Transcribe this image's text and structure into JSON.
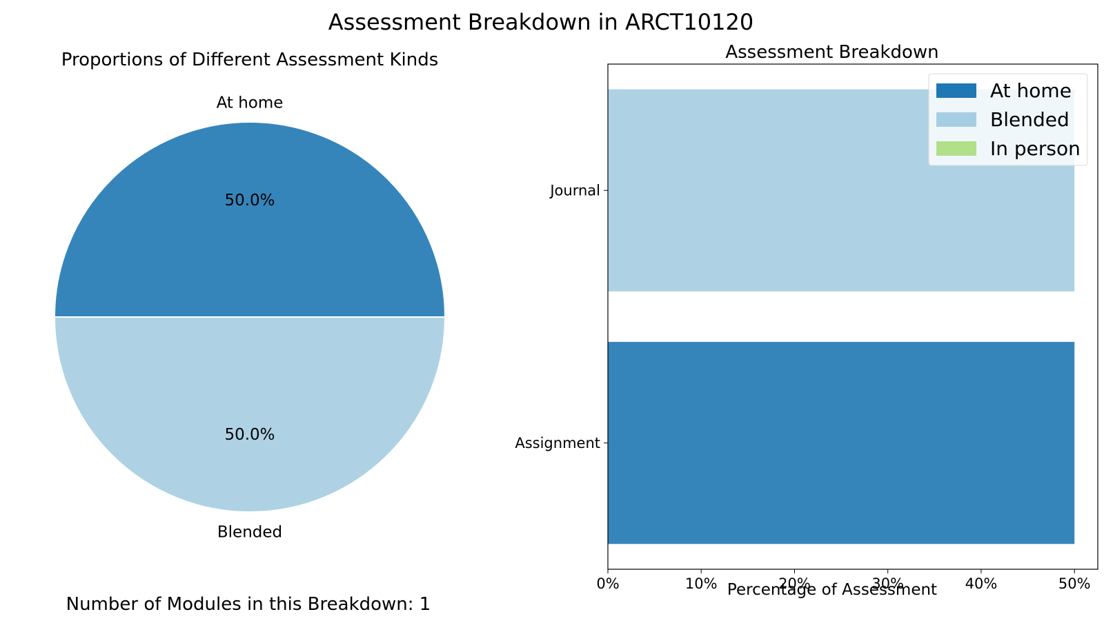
{
  "suptitle": "Assessment Breakdown in ARCT10120",
  "footer": "Number of Modules in this Breakdown: 1",
  "colors": {
    "at_home": "#3585bb",
    "blended": "#aed2e4",
    "in_person": "#b0de8a",
    "legend_at_home": "#1f78b4",
    "legend_blended": "#a6cee3",
    "legend_in_person": "#b2df8a",
    "pie_edge": "#ffffff",
    "axis": "#000000"
  },
  "chart_data": [
    {
      "type": "pie",
      "title": "Proportions of Different Assessment Kinds",
      "slices": [
        {
          "label": "At home",
          "value": 50.0,
          "pct_label": "50.0%",
          "color": "#3585bb"
        },
        {
          "label": "Blended",
          "value": 50.0,
          "pct_label": "50.0%",
          "color": "#aed2e4"
        }
      ],
      "start_angle_deg": 0,
      "direction": "counterclockwise"
    },
    {
      "type": "bar",
      "orientation": "horizontal",
      "stacked": true,
      "title": "Assessment Breakdown",
      "xlabel": "Percentage of Assessment",
      "ylabel": "",
      "categories": [
        "Assignment",
        "Journal"
      ],
      "series": [
        {
          "name": "At home",
          "values": [
            50,
            0
          ],
          "color": "#3585bb"
        },
        {
          "name": "Blended",
          "values": [
            0,
            50
          ],
          "color": "#aed2e4"
        },
        {
          "name": "In person",
          "values": [
            0,
            0
          ],
          "color": "#b0de8a"
        }
      ],
      "xlim": [
        0,
        52.5
      ],
      "xticks": [
        0,
        10,
        20,
        30,
        40,
        50
      ],
      "xtick_labels": [
        "0%",
        "10%",
        "20%",
        "30%",
        "40%",
        "50%"
      ],
      "legend": {
        "placement": "upper right",
        "entries": [
          "At home",
          "Blended",
          "In person"
        ]
      },
      "grid": false
    }
  ]
}
